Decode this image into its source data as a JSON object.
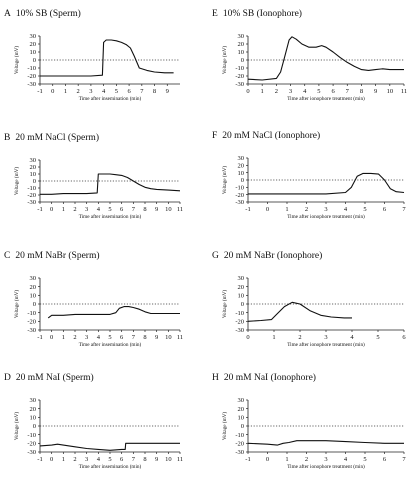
{
  "chart_data": [
    {
      "type": "line",
      "panel_letter": "A",
      "title": "10% SB (Sperm)",
      "xlabel": "Time after insemination (min)",
      "ylabel": "Voltage (mV)",
      "xlim": [
        -1,
        10
      ],
      "ylim": [
        -30,
        30
      ],
      "xticks": [
        "-1",
        "0",
        "1",
        "2",
        "3",
        "4",
        "5",
        "6",
        "7",
        "8",
        "9"
      ],
      "yticks": [
        "-30",
        "-20",
        "-10",
        "0",
        "10",
        "20",
        "30"
      ],
      "zero_line": "dotted",
      "series": [
        {
          "x": [
            -1,
            0,
            1,
            2,
            3,
            3.9,
            4.0,
            4.2,
            4.6,
            5.0,
            5.4,
            5.8,
            6.1,
            6.4,
            6.8,
            7.4,
            8,
            8.8,
            9.5
          ],
          "y": [
            -20,
            -20,
            -20,
            -20,
            -20,
            -19,
            22,
            25,
            25,
            24,
            22,
            19,
            15,
            5,
            -10,
            -13,
            -15,
            -16,
            -16
          ]
        }
      ]
    },
    {
      "type": "line",
      "panel_letter": "E",
      "title": "10% SB (Ionophore)",
      "xlabel": "Time after ionophore treatment (min)",
      "ylabel": "Voltage (mV)",
      "xlim": [
        0,
        11
      ],
      "ylim": [
        -30,
        30
      ],
      "xticks": [
        "0",
        "1",
        "2",
        "3",
        "4",
        "5",
        "6",
        "7",
        "8",
        "9",
        "10",
        "11"
      ],
      "yticks": [
        "-30",
        "-20",
        "-10",
        "0",
        "10",
        "20",
        "30"
      ],
      "zero_line": "dotted",
      "series": [
        {
          "x": [
            0,
            1,
            2,
            2.3,
            2.6,
            2.9,
            3.1,
            3.4,
            3.8,
            4.3,
            4.8,
            5.2,
            5.5,
            6.0,
            6.5,
            7.0,
            7.5,
            8.0,
            8.5,
            9.0,
            9.5,
            10,
            10.5,
            11
          ],
          "y": [
            -24,
            -25,
            -23,
            -15,
            5,
            25,
            29,
            26,
            20,
            16,
            16,
            18,
            16,
            10,
            3,
            -3,
            -8,
            -12,
            -13,
            -12,
            -11,
            -12,
            -12,
            -12
          ]
        }
      ]
    },
    {
      "type": "line",
      "panel_letter": "B",
      "title": "20 mM NaCl (Sperm)",
      "xlabel": "Time after insemination (min)",
      "ylabel": "Voltage (mV)",
      "xlim": [
        -1,
        11
      ],
      "ylim": [
        -30,
        30
      ],
      "xticks": [
        "-1",
        "0",
        "1",
        "2",
        "3",
        "4",
        "5",
        "6",
        "7",
        "8",
        "9",
        "10",
        "11"
      ],
      "yticks": [
        "-30",
        "-20",
        "-10",
        "0",
        "10",
        "20",
        "30"
      ],
      "zero_line": "dotted",
      "series": [
        {
          "x": [
            -1,
            0,
            1,
            2,
            3,
            3.9,
            4.0,
            4.5,
            5.0,
            5.5,
            6.0,
            6.5,
            7.0,
            7.5,
            8.0,
            8.5,
            9.0,
            10,
            11
          ],
          "y": [
            -19,
            -19,
            -18,
            -18,
            -18,
            -17,
            10,
            10,
            10,
            9,
            8,
            5,
            0,
            -5,
            -9,
            -11,
            -12,
            -13,
            -14
          ]
        }
      ]
    },
    {
      "type": "line",
      "panel_letter": "F",
      "title": "20 mM NaCl (Ionophore)",
      "xlabel": "Time after ionophore treatment (min)",
      "ylabel": "Voltage (mV)",
      "xlim": [
        -1,
        7
      ],
      "ylim": [
        -30,
        30
      ],
      "xticks": [
        "-1",
        "0",
        "1",
        "2",
        "3",
        "4",
        "5",
        "6",
        "7"
      ],
      "yticks": [
        "-30",
        "-20",
        "-10",
        "0",
        "10",
        "20",
        "30"
      ],
      "zero_line": "dotted",
      "series": [
        {
          "x": [
            -1,
            0,
            1,
            2,
            3,
            4,
            4.3,
            4.6,
            4.9,
            5.3,
            5.7,
            6.0,
            6.3,
            6.6,
            7
          ],
          "y": [
            -19,
            -19,
            -19,
            -19,
            -19,
            -17,
            -10,
            5,
            9,
            9,
            8,
            0,
            -12,
            -16,
            -17
          ]
        }
      ]
    },
    {
      "type": "line",
      "panel_letter": "C",
      "title": "20 mM NaBr (Sperm)",
      "xlabel": "Time after insemination (min)",
      "ylabel": "Voltage (mV)",
      "xlim": [
        -1,
        11
      ],
      "ylim": [
        -30,
        30
      ],
      "xticks": [
        "-1",
        "0",
        "1",
        "2",
        "3",
        "4",
        "5",
        "6",
        "7",
        "8",
        "9",
        "10",
        "11"
      ],
      "yticks": [
        "-30",
        "-20",
        "-10",
        "0",
        "10",
        "20",
        "30"
      ],
      "zero_line": "dotted",
      "series": [
        {
          "x": [
            -0.3,
            0,
            1,
            2,
            3,
            4,
            5,
            5.5,
            5.8,
            6.2,
            6.6,
            7,
            7.5,
            8,
            8.5,
            9,
            10,
            11
          ],
          "y": [
            -16,
            -13,
            -13,
            -12,
            -12,
            -12,
            -12,
            -10,
            -5,
            -3,
            -3,
            -4,
            -6,
            -9,
            -11,
            -11,
            -11,
            -11
          ]
        }
      ]
    },
    {
      "type": "line",
      "panel_letter": "G",
      "title": "20 mM NaBr (Ionophore)",
      "xlabel": "Time after ionophore treatment (min)",
      "ylabel": "Voltage (mV)",
      "xlim": [
        0,
        6
      ],
      "ylim": [
        -30,
        30
      ],
      "xticks": [
        "0",
        "1",
        "2",
        "3",
        "4",
        "5",
        "6"
      ],
      "yticks": [
        "-30",
        "-20",
        "-10",
        "0",
        "10",
        "20",
        "30"
      ],
      "zero_line": "dotted",
      "series": [
        {
          "x": [
            0,
            0.5,
            0.9,
            1.1,
            1.4,
            1.7,
            2.0,
            2.4,
            2.8,
            3.2,
            3.7,
            4.0
          ],
          "y": [
            -20,
            -19,
            -18,
            -12,
            -3,
            2,
            0,
            -8,
            -13,
            -15,
            -16,
            -16
          ]
        }
      ]
    },
    {
      "type": "line",
      "panel_letter": "D",
      "title": "20 mM NaI (Sperm)",
      "xlabel": "Time after insemination (min)",
      "ylabel": "Voltage (mV)",
      "xlim": [
        -1,
        11
      ],
      "ylim": [
        -30,
        30
      ],
      "xticks": [
        "-1",
        "0",
        "1",
        "2",
        "3",
        "4",
        "5",
        "6",
        "7",
        "8",
        "9",
        "10",
        "11"
      ],
      "yticks": [
        "-30",
        "-20",
        "-10",
        "0",
        "10",
        "20",
        "30"
      ],
      "zero_line": "dotted",
      "series": [
        {
          "x": [
            -1,
            0,
            0.5,
            1,
            2,
            3,
            4,
            5,
            6,
            6.3,
            6.35,
            7,
            8,
            9,
            10,
            11
          ],
          "y": [
            -23,
            -22,
            -21,
            -22,
            -24,
            -26,
            -27,
            -28,
            -27,
            -27,
            -20,
            -20,
            -20,
            -20,
            -20,
            -20
          ]
        }
      ]
    },
    {
      "type": "line",
      "panel_letter": "H",
      "title": "20 mM NaI (Ionophore)",
      "xlabel": "Time after ionophore treatment (min)",
      "ylabel": "Voltage (mV)",
      "xlim": [
        -1,
        7
      ],
      "ylim": [
        -30,
        30
      ],
      "xticks": [
        "-1",
        "0",
        "1",
        "2",
        "3",
        "4",
        "5",
        "6",
        "7"
      ],
      "yticks": [
        "-30",
        "-20",
        "-10",
        "0",
        "10",
        "20",
        "30"
      ],
      "zero_line": "dotted",
      "series": [
        {
          "x": [
            -1,
            0,
            0.5,
            0.8,
            1.1,
            1.5,
            2,
            3,
            4,
            5,
            6,
            7
          ],
          "y": [
            -20,
            -21,
            -22,
            -20,
            -19,
            -17,
            -17,
            -17,
            -18,
            -19,
            -20,
            -20
          ]
        }
      ]
    }
  ]
}
